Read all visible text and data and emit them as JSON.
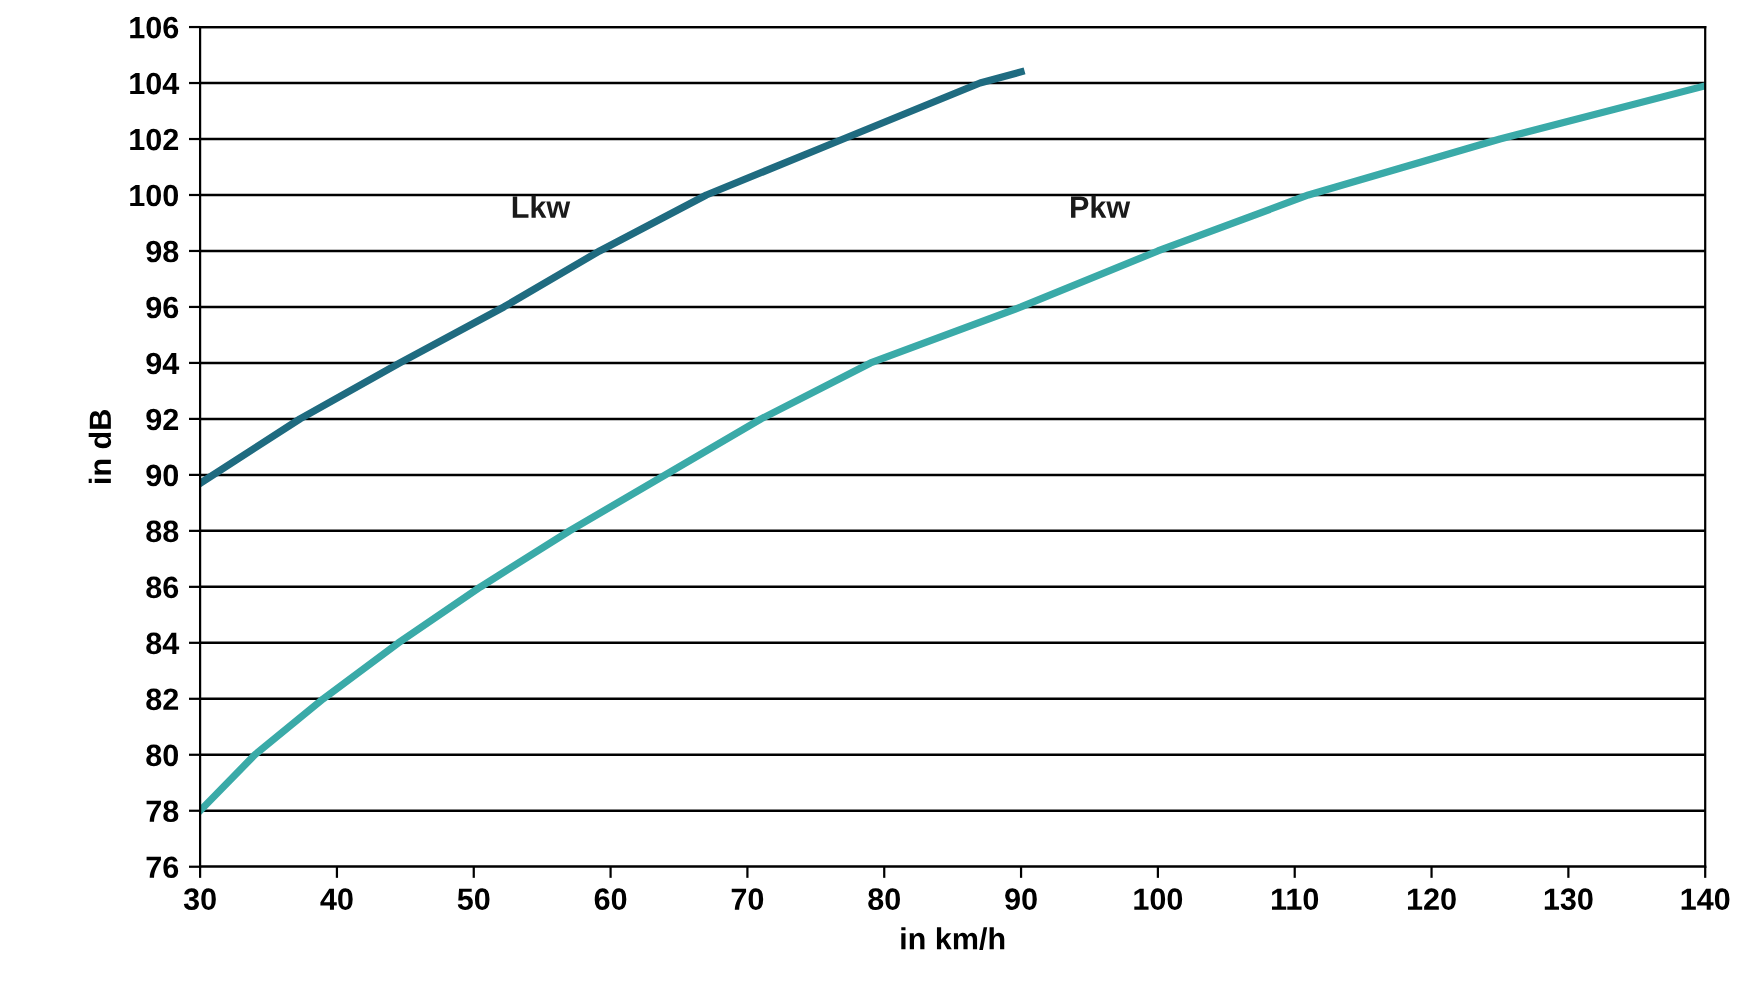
{
  "chart_data": {
    "type": "line",
    "xlabel": "in km/h",
    "ylabel": "in dB",
    "xlim": [
      30,
      140
    ],
    "xticks": [
      30,
      40,
      50,
      60,
      70,
      80,
      90,
      100,
      110,
      120,
      130,
      140
    ],
    "ylim": [
      76,
      106
    ],
    "yticks": [
      76,
      78,
      80,
      82,
      84,
      86,
      88,
      90,
      92,
      94,
      96,
      98,
      100,
      102,
      104,
      106
    ],
    "grid": "y",
    "legend": false,
    "marker": "none",
    "line_style": "solid",
    "series": [
      {
        "name": "Lkw",
        "color": "#1f6b80",
        "x": [
          30,
          37.3,
          44.6,
          52.2,
          59.2,
          67,
          77,
          87,
          90
        ],
        "values": [
          89.7,
          92,
          94,
          96,
          98,
          100,
          102,
          104,
          104.4
        ]
      },
      {
        "name": "Pkw",
        "color": "#3aaaa8",
        "x": [
          30,
          34,
          39,
          44.5,
          50.5,
          57,
          64,
          71,
          79,
          90,
          100,
          111,
          125,
          140
        ],
        "values": [
          78,
          80,
          82,
          84,
          86,
          88,
          90,
          92,
          94,
          96,
          98,
          100,
          102,
          103.9
        ]
      }
    ]
  }
}
